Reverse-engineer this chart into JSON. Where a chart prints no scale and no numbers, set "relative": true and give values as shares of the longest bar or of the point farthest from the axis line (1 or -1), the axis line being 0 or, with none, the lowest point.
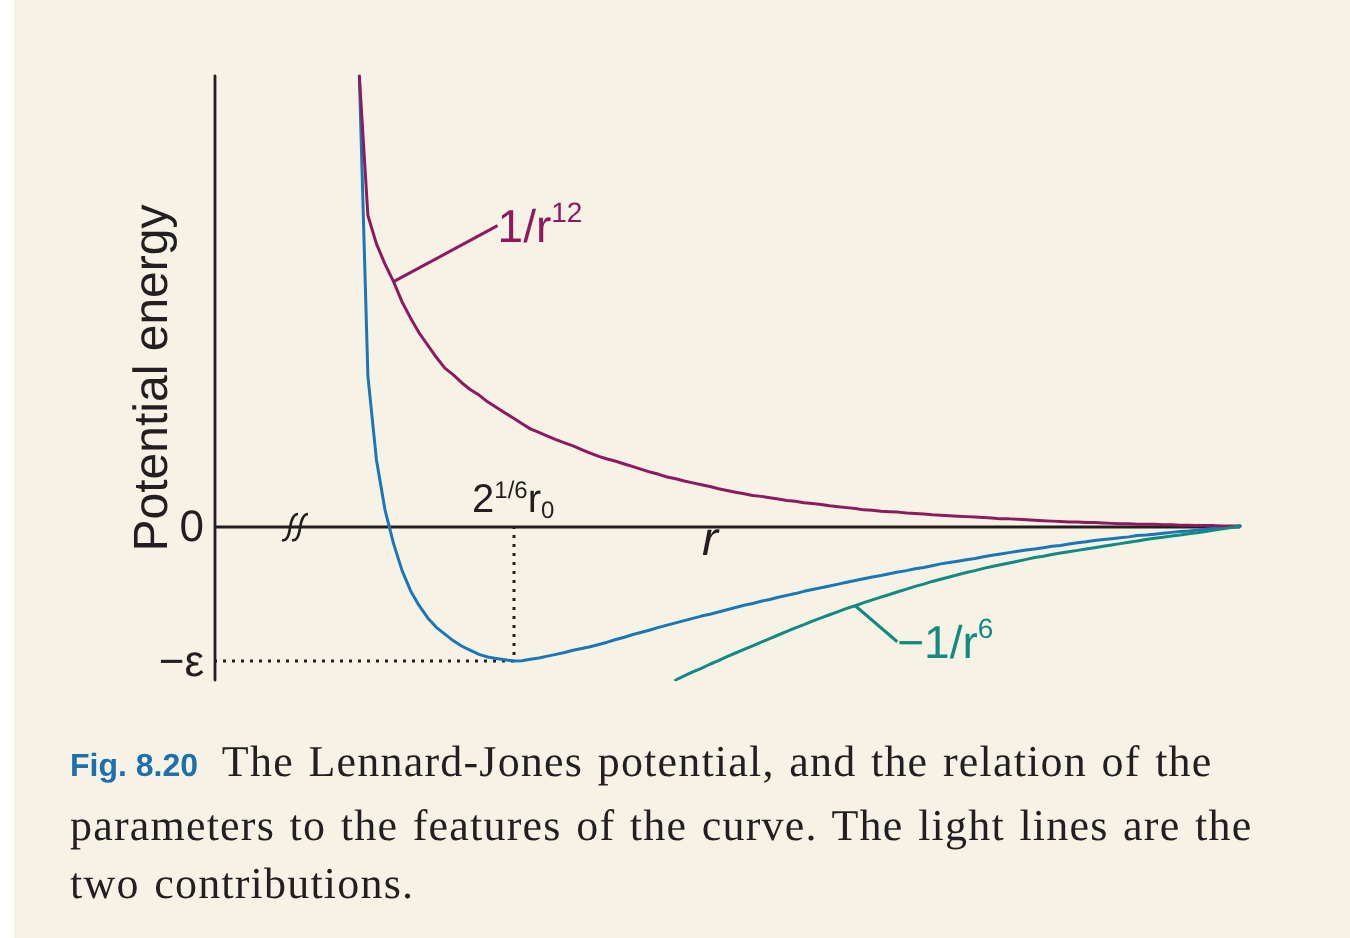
{
  "chart_data": {
    "type": "line",
    "xlabel": "r",
    "ylabel": "Potential energy",
    "relative": true,
    "legend": "center",
    "annotations": [
      "2$^{1/6}$r$_{0}$",
      "Fig. 8.20 The Lennard-Jones potential, and the relation of the parameters to the features of the curve. The light lines are the two contributions."
    ],
    "categories": [
      null,
      null,
      null,
      null,
      null,
      null,
      null,
      null,
      null,
      null,
      null,
      null,
      null,
      null,
      null,
      null,
      null,
      null,
      null,
      null,
      null,
      null,
      null,
      null,
      null,
      null,
      null,
      null,
      null,
      null,
      null,
      null,
      null,
      null,
      null,
      null,
      null,
      null,
      null,
      null,
      null,
      null,
      null,
      null,
      null,
      null,
      null,
      null,
      null,
      null,
      null,
      null,
      null,
      null,
      null,
      null,
      null,
      null,
      null,
      null,
      null,
      null,
      null,
      null,
      null,
      null,
      null,
      null,
      null,
      null,
      null,
      null,
      null,
      null,
      null,
      null,
      null,
      null,
      null,
      null,
      null,
      null,
      null,
      null,
      null,
      null,
      null,
      null,
      null,
      null,
      null,
      null,
      null,
      null,
      null,
      null,
      null,
      null,
      null,
      null,
      null,
      null,
      null,
      null,
      null,
      null,
      null,
      null,
      null,
      null,
      null,
      null,
      null,
      null,
      null,
      null,
      null,
      null,
      null,
      null,
      null
    ],
    "series": [
      {
        "color": "#1b76b8",
        "values": [
          null,
          null,
          null,
          null,
          null,
          null,
          null,
          null,
          null,
          null,
          null,
          null,
          null,
          null,
          null,
          null,
          null,
          1,
          0.333,
          0.147,
          0.036,
          -0.039,
          -0.099,
          -0.144,
          -0.177,
          -0.204,
          -0.225,
          -0.24,
          -0.255,
          -0.267,
          -0.276,
          -0.285,
          -0.291,
          -0.294,
          -0.297,
          -0.3,
          -0.299,
          -0.296,
          -0.293,
          -0.289,
          -0.285,
          -0.281,
          -0.276,
          -0.272,
          -0.268,
          -0.263,
          -0.258,
          -0.252,
          -0.247,
          -0.241,
          -0.236,
          -0.231,
          -0.225,
          -0.22,
          -0.215,
          -0.21,
          -0.205,
          -0.2,
          -0.196,
          -0.191,
          -0.186,
          -0.181,
          -0.176,
          -0.172,
          -0.167,
          -0.163,
          -0.158,
          -0.154,
          -0.15,
          -0.145,
          -0.141,
          -0.137,
          -0.133,
          -0.129,
          -0.125,
          -0.121,
          -0.117,
          -0.113,
          -0.11,
          -0.106,
          -0.102,
          -0.099,
          -0.095,
          -0.092,
          -0.088,
          -0.084,
          -0.081,
          -0.078,
          -0.075,
          -0.072,
          -0.068,
          -0.065,
          -0.062,
          -0.059,
          -0.056,
          -0.053,
          -0.051,
          -0.048,
          -0.045,
          -0.043,
          -0.04,
          -0.037,
          -0.035,
          -0.032,
          -0.03,
          -0.028,
          -0.026,
          -0.024,
          -0.021,
          -0.02,
          -0.018,
          -0.016,
          -0.014,
          -0.012,
          -0.011,
          -0.009,
          -0.007,
          -0.005,
          -0.004,
          -0.002,
          0
        ]
      },
      {
        "name": "1/r$^{12}$",
        "color": "#8e1a5e",
        "values": [
          null,
          null,
          null,
          null,
          null,
          null,
          null,
          null,
          null,
          null,
          null,
          null,
          null,
          null,
          null,
          null,
          null,
          1,
          0.69,
          0.627,
          0.582,
          0.543,
          0.498,
          0.462,
          0.429,
          0.402,
          0.375,
          0.351,
          0.336,
          0.318,
          0.303,
          0.291,
          0.276,
          0.264,
          0.252,
          0.24,
          0.228,
          0.216,
          0.208,
          0.2,
          0.192,
          0.185,
          0.178,
          0.17,
          0.162,
          0.155,
          0.149,
          0.144,
          0.138,
          0.132,
          0.126,
          0.12,
          0.115,
          0.109,
          0.105,
          0.1,
          0.096,
          0.092,
          0.088,
          0.083,
          0.079,
          0.075,
          0.072,
          0.068,
          0.066,
          0.063,
          0.06,
          0.057,
          0.055,
          0.052,
          0.05,
          0.048,
          0.045,
          0.043,
          0.041,
          0.039,
          0.036,
          0.035,
          0.033,
          0.032,
          0.031,
          0.029,
          0.028,
          0.027,
          0.025,
          0.024,
          0.023,
          0.022,
          0.021,
          0.02,
          0.019,
          0.018,
          0.016,
          0.016,
          0.015,
          0.014,
          0.013,
          0.012,
          0.011,
          0.01,
          0.009,
          0.009,
          0.008,
          0.008,
          0.007,
          0.006,
          0.005,
          0.005,
          0.004,
          0.004,
          0.004,
          0.003,
          0.003,
          0.002,
          0.002,
          0.001,
          0.001,
          0.001,
          0,
          0,
          0
        ]
      },
      {
        "name": "−1/r$^{6}$",
        "color": "#138a80",
        "values": [
          null,
          null,
          null,
          null,
          null,
          null,
          null,
          null,
          null,
          null,
          null,
          null,
          null,
          null,
          null,
          null,
          null,
          null,
          null,
          null,
          null,
          null,
          null,
          null,
          null,
          null,
          null,
          null,
          null,
          null,
          null,
          null,
          null,
          null,
          null,
          null,
          null,
          null,
          null,
          null,
          null,
          null,
          null,
          null,
          null,
          null,
          null,
          null,
          null,
          null,
          null,
          null,
          null,
          null,
          -0.342,
          -0.333,
          -0.324,
          -0.316,
          -0.307,
          -0.299,
          -0.29,
          -0.282,
          -0.274,
          -0.266,
          -0.258,
          -0.25,
          -0.242,
          -0.234,
          -0.226,
          -0.219,
          -0.211,
          -0.204,
          -0.197,
          -0.19,
          -0.183,
          -0.177,
          -0.17,
          -0.164,
          -0.158,
          -0.152,
          -0.146,
          -0.14,
          -0.134,
          -0.129,
          -0.123,
          -0.118,
          -0.113,
          -0.108,
          -0.103,
          -0.099,
          -0.094,
          -0.09,
          -0.086,
          -0.082,
          -0.078,
          -0.074,
          -0.07,
          -0.067,
          -0.063,
          -0.06,
          -0.057,
          -0.054,
          -0.051,
          -0.048,
          -0.045,
          -0.042,
          -0.039,
          -0.036,
          -0.033,
          -0.03,
          -0.027,
          -0.025,
          -0.022,
          -0.02,
          -0.017,
          -0.015,
          -0.012,
          -0.009,
          -0.006,
          -0.003,
          0
        ]
      }
    ],
    "ref_lines": [
      {
        "axis": "y",
        "value": 0,
        "label": "0",
        "color": "#231f20"
      },
      {
        "axis": "y",
        "value": -0.3,
        "label": "−ε",
        "line_style": "dotted",
        "color": "#231f20"
      }
    ],
    "marker": "none"
  }
}
